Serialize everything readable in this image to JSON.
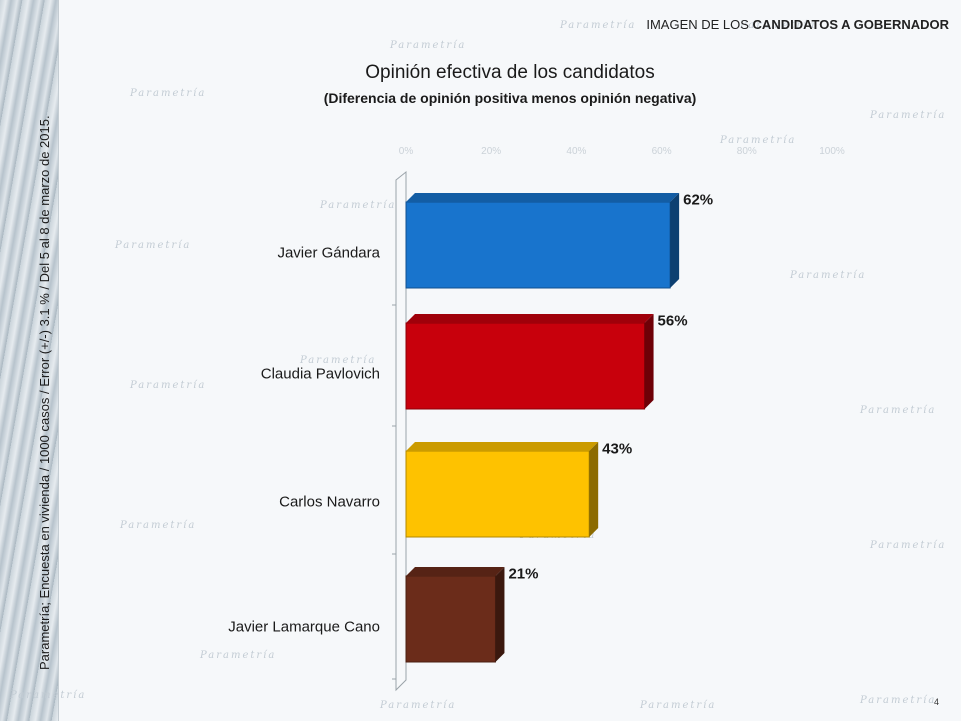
{
  "header": {
    "section_prefix": "IMAGEN DE LOS ",
    "section_bold": "CANDIDATOS A GOBERNADOR"
  },
  "sidebar_note": "Parametría; Encuesta en vivienda / 1000 casos / Error (+/-) 3.1 % / Del 5 al 8 de marzo de 2015.",
  "watermark_text": "Parametría",
  "page_number": "4",
  "chart_data": {
    "type": "bar",
    "orientation": "horizontal",
    "title": "Opinión efectiva de los candidatos",
    "subtitle": "(Diferencia de opinión positiva menos opinión negativa)",
    "categories": [
      "Javier Gándara",
      "Claudia Pavlovich",
      "Carlos Navarro",
      "Javier Lamarque Cano"
    ],
    "values": [
      62,
      56,
      43,
      21
    ],
    "value_labels": [
      "62%",
      "56%",
      "43%",
      "21%"
    ],
    "colors": [
      "#1874cd",
      "#c8000c",
      "#fec200",
      "#6b2c1a"
    ],
    "xlim": [
      0,
      100
    ],
    "x_ticks": [
      "0%",
      "20%",
      "40%",
      "60%",
      "80%",
      "100%"
    ],
    "grid": false
  }
}
